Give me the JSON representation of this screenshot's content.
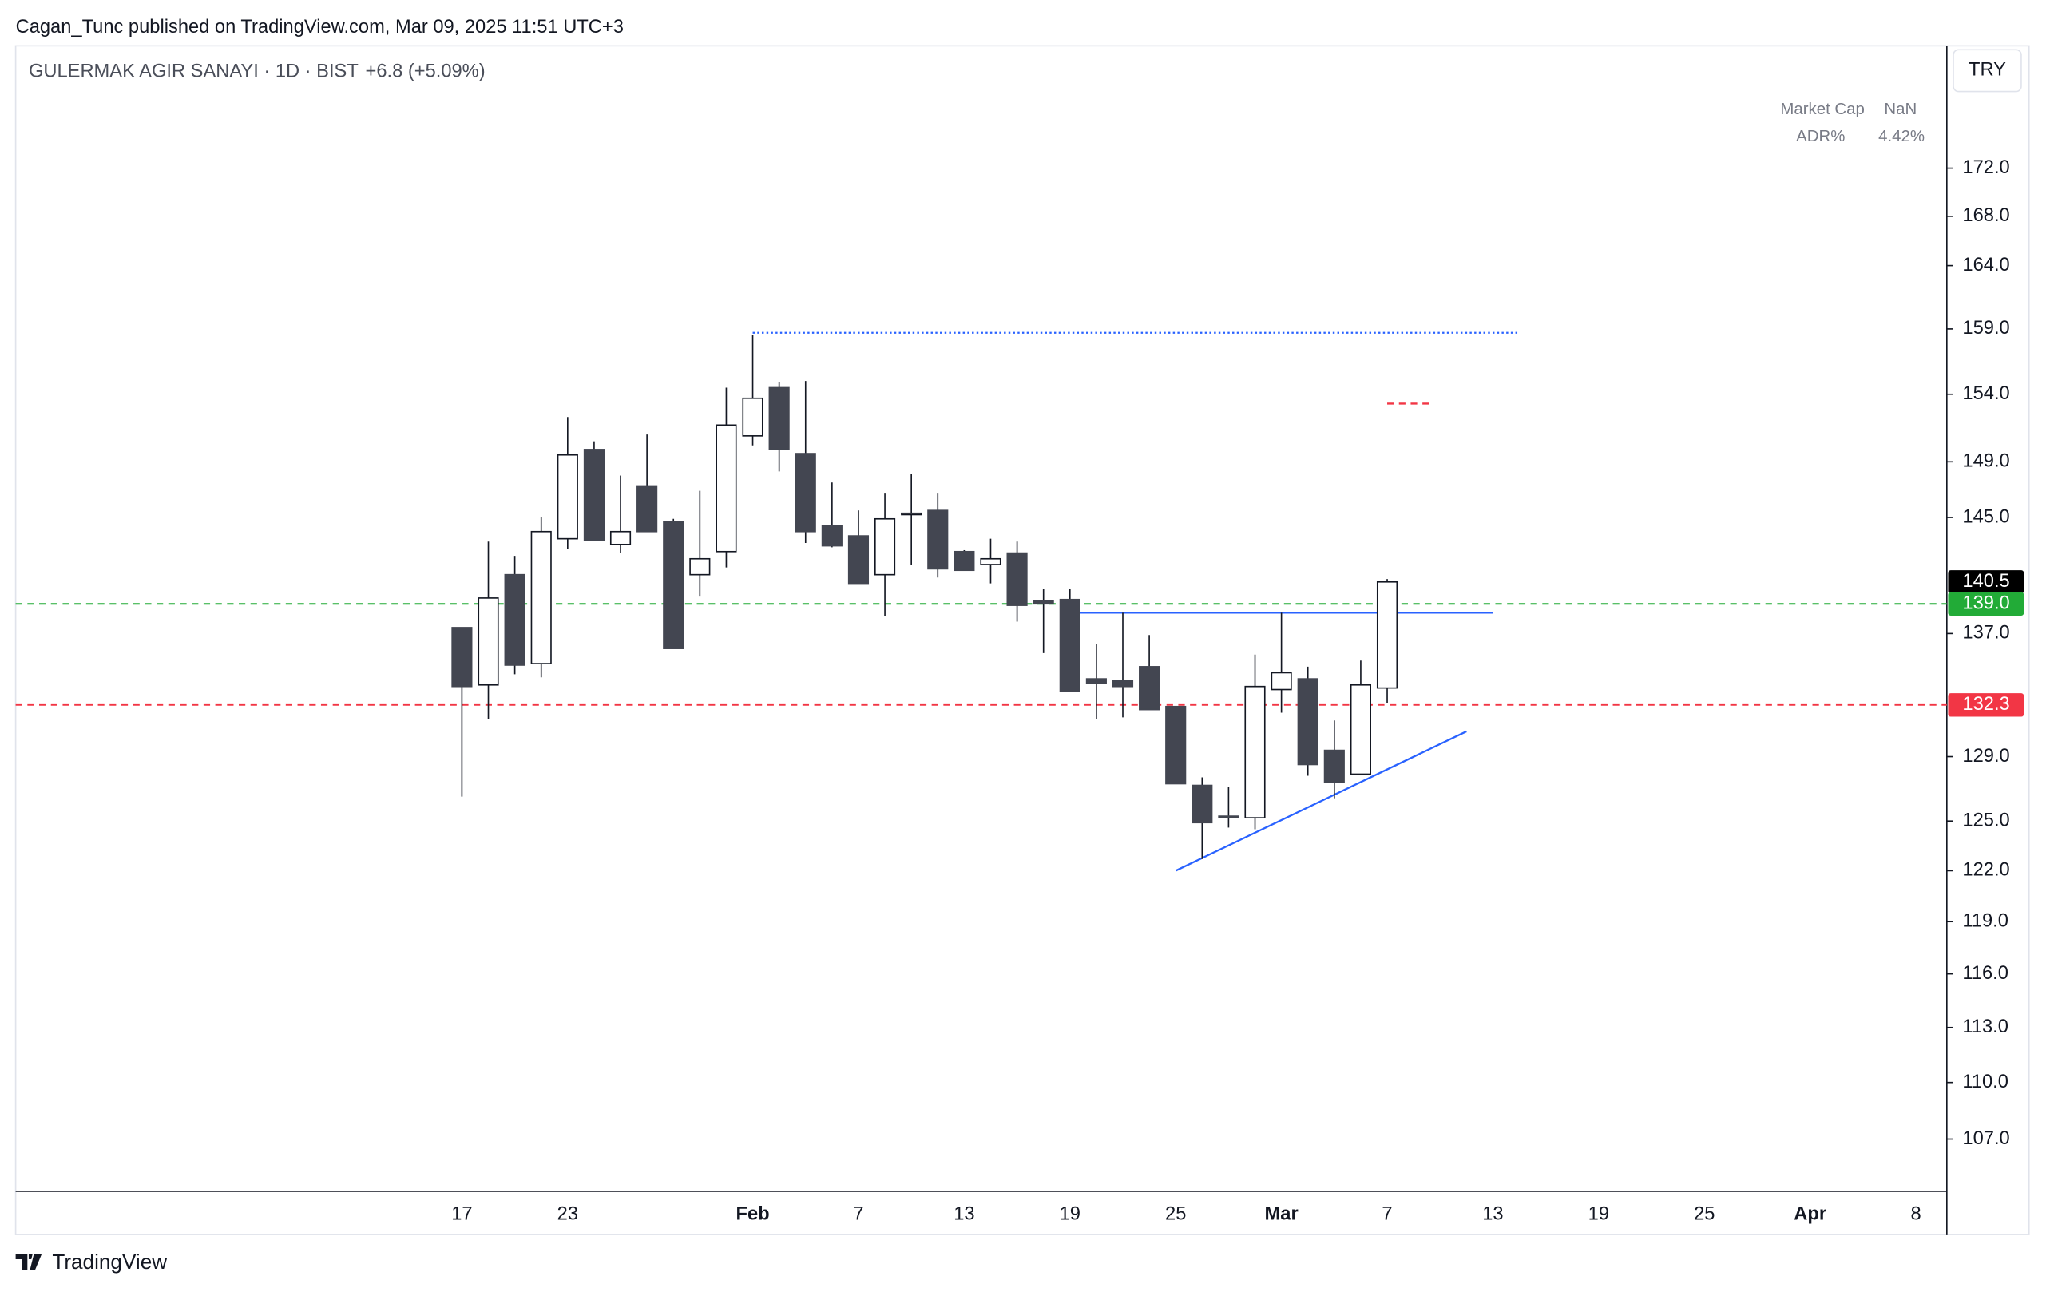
{
  "header": {
    "published": "Cagan_Tunc published on TradingView.com, Mar 09, 2025 11:51 UTC+3",
    "currency": "TRY",
    "brand": "TradingView"
  },
  "indicators": [
    {
      "label": "Market Cap",
      "value": "NaN"
    },
    {
      "label": "ADR%",
      "value": "4.42%"
    }
  ],
  "chart_data": {
    "type": "candlestick",
    "title": "GULERMAK AGIR SANAYI · 1D · BIST",
    "subtitle": "+6.8 (+5.09%)",
    "categories": [
      "17",
      null,
      null,
      null,
      "23",
      null,
      null,
      null,
      null,
      null,
      null,
      "Feb",
      null,
      null,
      null,
      "7",
      null,
      null,
      null,
      "13",
      null,
      null,
      null,
      "19",
      null,
      null,
      null,
      "25",
      null,
      null,
      null,
      "Mar",
      null,
      null,
      null,
      "7",
      null,
      null,
      null,
      "13",
      null,
      null,
      null,
      "19",
      null,
      null,
      null,
      "25",
      null,
      null,
      null,
      "Apr",
      null,
      null,
      null,
      "8"
    ],
    "open": [
      137.4,
      133.6,
      141.0,
      135.0,
      143.5,
      149.9,
      143.1,
      147.2,
      144.7,
      141.0,
      142.6,
      150.9,
      154.5,
      149.6,
      144.4,
      143.7,
      141.0,
      145.2,
      145.5,
      142.6,
      141.7,
      142.5,
      139.2,
      139.3,
      134.0,
      133.9,
      134.8,
      132.2,
      127.2,
      125.3,
      125.2,
      133.3,
      134.0,
      129.4,
      127.9,
      133.4,
      null,
      null,
      null,
      null,
      null,
      null,
      null,
      null,
      null,
      null,
      null,
      null,
      null,
      null,
      null,
      null,
      null,
      null,
      null,
      null
    ],
    "high": [
      137.4,
      143.3,
      142.3,
      145.0,
      152.3,
      150.5,
      148.0,
      151.0,
      144.9,
      146.9,
      154.5,
      158.5,
      154.9,
      155.0,
      147.5,
      145.5,
      146.7,
      148.1,
      146.7,
      142.7,
      143.5,
      143.3,
      140.0,
      140.0,
      136.3,
      138.4,
      136.9,
      132.2,
      127.7,
      127.1,
      135.6,
      138.4,
      134.8,
      131.3,
      135.2,
      140.7,
      null,
      null,
      null,
      null,
      null,
      null,
      null,
      null,
      null,
      null,
      null,
      null,
      null,
      null,
      null,
      null,
      null,
      null,
      null,
      null
    ],
    "low": [
      126.5,
      131.4,
      134.3,
      134.1,
      142.8,
      143.4,
      142.5,
      144.0,
      136.0,
      139.5,
      141.5,
      150.2,
      148.3,
      143.2,
      142.9,
      140.4,
      138.2,
      141.7,
      140.8,
      141.3,
      140.4,
      137.8,
      135.7,
      133.2,
      131.4,
      131.5,
      132.0,
      127.3,
      122.7,
      124.6,
      124.5,
      131.8,
      127.8,
      126.4,
      127.9,
      132.4,
      null,
      null,
      null,
      null,
      null,
      null,
      null,
      null,
      null,
      null,
      null,
      null,
      null,
      null,
      null,
      null,
      null,
      null,
      null,
      null
    ],
    "close": [
      133.5,
      139.4,
      134.9,
      144.0,
      149.5,
      143.4,
      144.0,
      144.0,
      136.0,
      142.1,
      151.7,
      153.7,
      149.9,
      144.0,
      143.0,
      140.4,
      144.9,
      145.3,
      141.4,
      141.3,
      142.1,
      138.9,
      139.0,
      133.2,
      133.7,
      133.5,
      132.0,
      127.3,
      124.9,
      125.2,
      133.5,
      134.4,
      128.5,
      127.4,
      133.6,
      140.5,
      null,
      null,
      null,
      null,
      null,
      null,
      null,
      null,
      null,
      null,
      null,
      null,
      null,
      null,
      null,
      null,
      null,
      null,
      null,
      null
    ],
    "up_color": "#ffffff",
    "down_color": "#434651",
    "wick_color": "#131722",
    "log_scale": true,
    "ylim": [
      104.3,
      182.6
    ],
    "yticks": [
      {
        "value": 172,
        "label": "172.0"
      },
      {
        "value": 168,
        "label": "168.0"
      },
      {
        "value": 164,
        "label": "164.0"
      },
      {
        "value": 159,
        "label": "159.0"
      },
      {
        "value": 154,
        "label": "154.0"
      },
      {
        "value": 149,
        "label": "149.0"
      },
      {
        "value": 145,
        "label": "145.0"
      },
      {
        "value": 137,
        "label": "137.0"
      },
      {
        "value": 129,
        "label": "129.0"
      },
      {
        "value": 125,
        "label": "125.0"
      },
      {
        "value": 122,
        "label": "122.0"
      },
      {
        "value": 119,
        "label": "119.0"
      },
      {
        "value": 116,
        "label": "116.0"
      },
      {
        "value": 113,
        "label": "113.0"
      },
      {
        "value": 110,
        "label": "110.0"
      },
      {
        "value": 107,
        "label": "107.0"
      }
    ],
    "price_labels": [
      {
        "value": 140.5,
        "label": "140.5",
        "color": "#000000"
      },
      {
        "value": 139.0,
        "label": "139.0",
        "color": "#22ab37"
      },
      {
        "value": 132.3,
        "label": "132.3",
        "color": "#f23645"
      }
    ],
    "horizontal_lines": [
      {
        "value": 139.0,
        "color": "#22ab37",
        "style": "dashed"
      },
      {
        "value": 132.3,
        "color": "#f23645",
        "style": "dashed"
      }
    ],
    "segments": [
      {
        "x": [
          11,
          40
        ],
        "y": [
          158.7,
          158.7
        ],
        "color": "#2962ff",
        "style": "dotted"
      },
      {
        "x": [
          23,
          39
        ],
        "y": [
          138.4,
          138.4
        ],
        "color": "#2962ff",
        "style": "solid"
      },
      {
        "x": [
          27,
          38
        ],
        "y": [
          122.0,
          130.6
        ],
        "color": "#2962ff",
        "style": "solid"
      },
      {
        "x": [
          35,
          36.7
        ],
        "y": [
          153.3,
          153.3
        ],
        "color": "#f23645",
        "style": "dashed"
      }
    ]
  }
}
